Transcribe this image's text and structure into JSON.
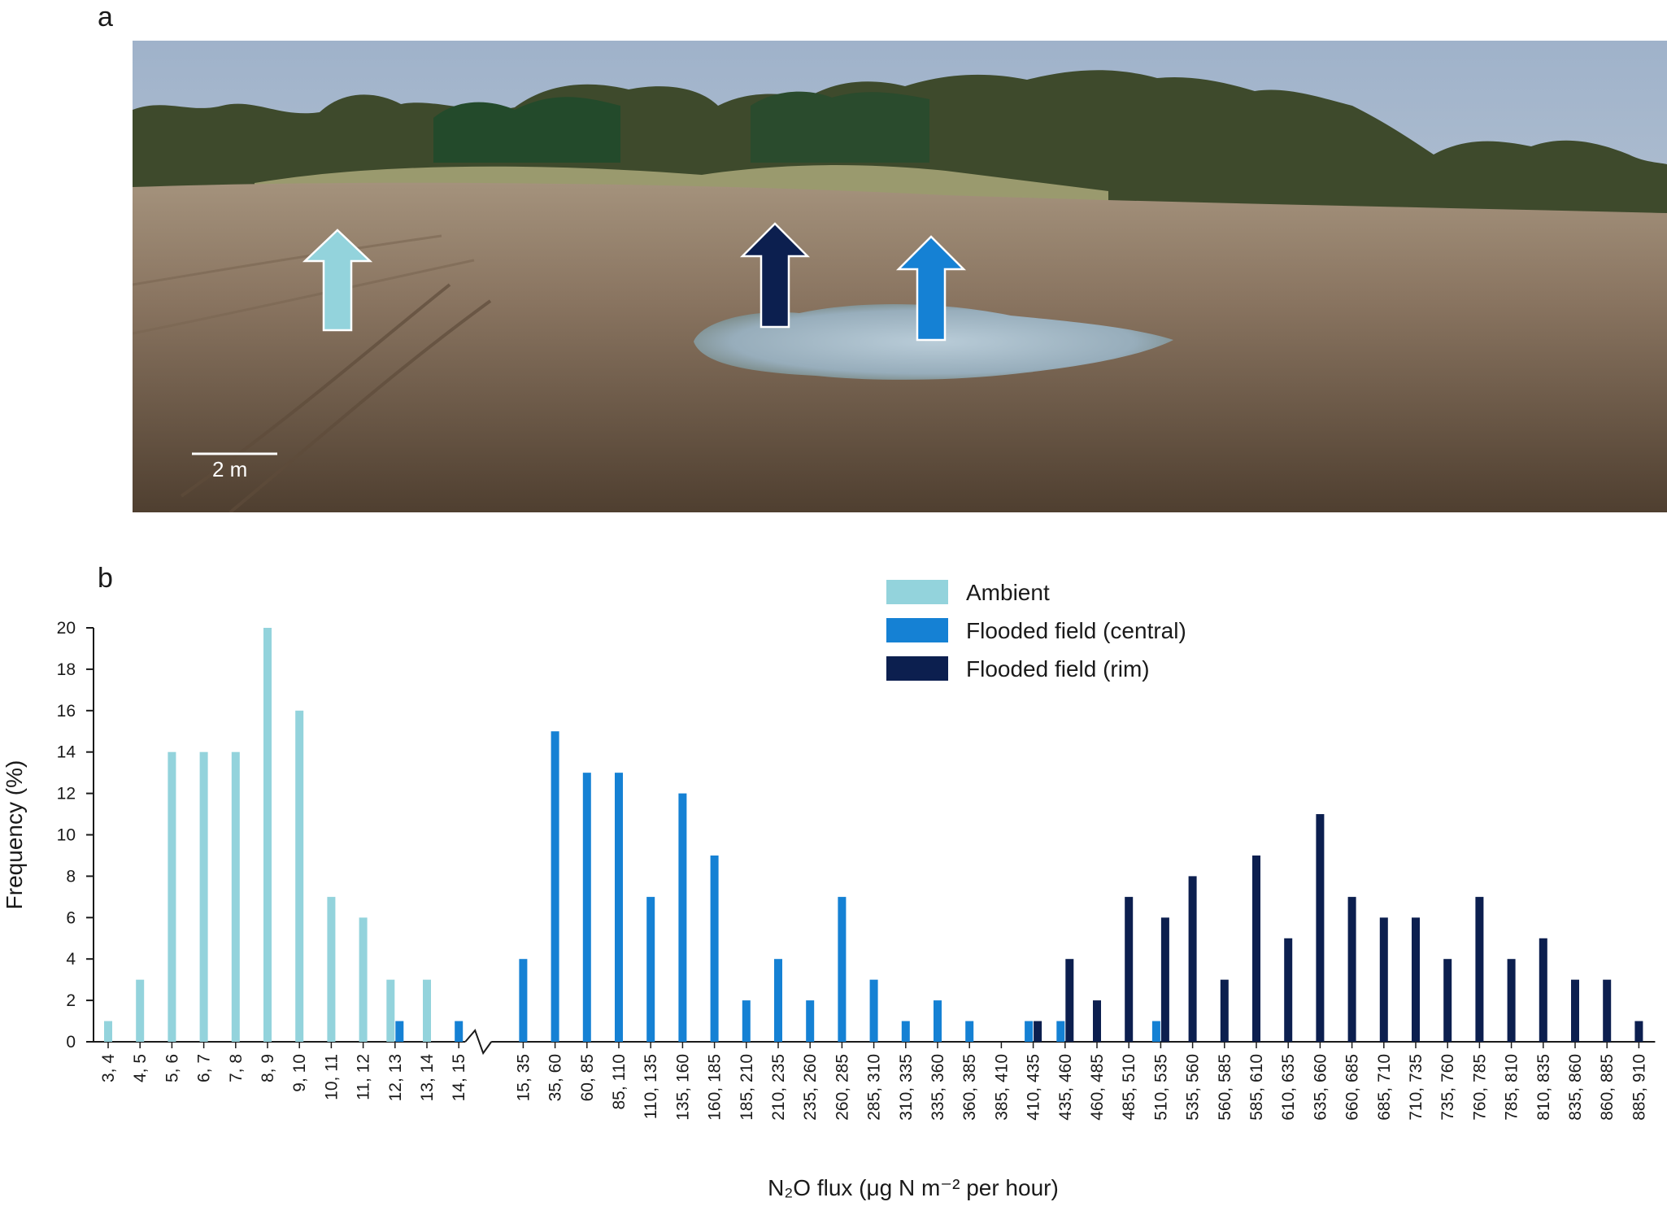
{
  "panel_a": {
    "label": "a",
    "scale_bar_text": "2 m",
    "arrows": [
      {
        "name": "ambient-arrow",
        "color": "#93d3dc"
      },
      {
        "name": "rim-arrow",
        "color": "#0c1f4f"
      },
      {
        "name": "central-arrow",
        "color": "#1581d4"
      }
    ]
  },
  "panel_b": {
    "label": "b"
  },
  "chart_data": {
    "type": "bar",
    "xlabel": "N₂O flux (μg N m⁻² per hour)",
    "ylabel": "Frequency (%)",
    "ylim": [
      0,
      20
    ],
    "yticks": [
      0,
      2,
      4,
      6,
      8,
      10,
      12,
      14,
      16,
      18,
      20
    ],
    "grid": false,
    "axis_break_after": "14, 15",
    "legend_position": "top-right",
    "categories": [
      "3, 4",
      "4, 5",
      "5, 6",
      "6, 7",
      "7, 8",
      "8, 9",
      "9, 10",
      "10, 11",
      "11, 12",
      "12, 13",
      "13, 14",
      "14, 15",
      "15, 35",
      "35, 60",
      "60, 85",
      "85, 110",
      "110, 135",
      "135, 160",
      "160, 185",
      "185, 210",
      "210, 235",
      "235, 260",
      "260, 285",
      "285, 310",
      "310, 335",
      "335, 360",
      "360, 385",
      "385, 410",
      "410, 435",
      "435, 460",
      "460, 485",
      "485, 510",
      "510, 535",
      "535, 560",
      "560, 585",
      "585, 610",
      "610, 635",
      "635, 660",
      "660, 685",
      "685, 710",
      "710, 735",
      "735, 760",
      "760, 785",
      "785, 810",
      "810, 835",
      "835, 860",
      "860, 885",
      "885, 910"
    ],
    "series": [
      {
        "name": "Ambient",
        "color": "#93d3dc",
        "values": [
          1,
          3,
          14,
          14,
          14,
          20,
          16,
          7,
          6,
          3,
          3,
          0,
          0,
          0,
          0,
          0,
          0,
          0,
          0,
          0,
          0,
          0,
          0,
          0,
          0,
          0,
          0,
          0,
          0,
          0,
          0,
          0,
          0,
          0,
          0,
          0,
          0,
          0,
          0,
          0,
          0,
          0,
          0,
          0,
          0,
          0,
          0,
          0
        ]
      },
      {
        "name": "Flooded field (central)",
        "color": "#1581d4",
        "values": [
          0,
          0,
          0,
          0,
          0,
          0,
          0,
          0,
          0,
          1,
          0,
          1,
          4,
          15,
          13,
          13,
          7,
          12,
          9,
          2,
          4,
          2,
          7,
          3,
          1,
          2,
          1,
          0,
          1,
          1,
          0,
          0,
          1,
          0,
          0,
          0,
          0,
          0,
          0,
          0,
          0,
          0,
          0,
          0,
          0,
          0,
          0,
          0
        ]
      },
      {
        "name": "Flooded field (rim)",
        "color": "#0c1f4f",
        "values": [
          0,
          0,
          0,
          0,
          0,
          0,
          0,
          0,
          0,
          0,
          0,
          0,
          0,
          0,
          0,
          0,
          0,
          0,
          0,
          0,
          0,
          0,
          0,
          0,
          0,
          0,
          0,
          0,
          1,
          4,
          2,
          7,
          6,
          8,
          3,
          9,
          5,
          11,
          7,
          6,
          6,
          4,
          7,
          4,
          5,
          3,
          3,
          1
        ]
      }
    ]
  }
}
